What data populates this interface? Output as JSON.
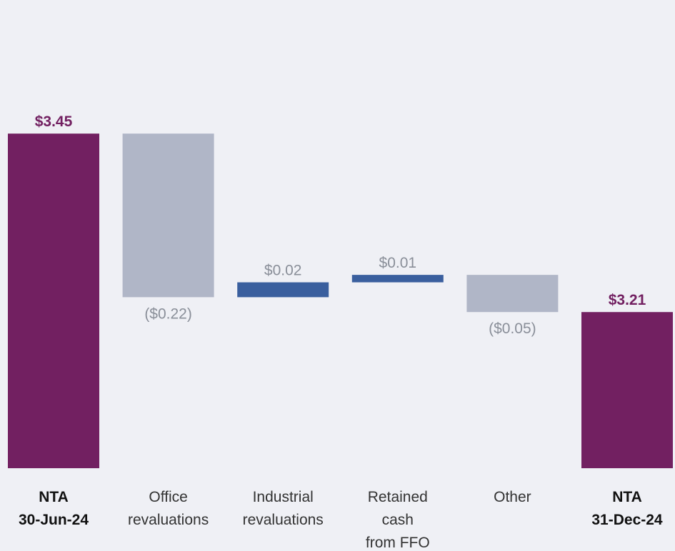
{
  "chart_data": {
    "type": "waterfall",
    "categories": [
      [
        "NTA",
        "30-Jun-24"
      ],
      [
        "Office",
        "revaluations"
      ],
      [
        "Industrial",
        "revaluations"
      ],
      [
        "Retained",
        "cash",
        "from FFO"
      ],
      [
        "Other"
      ],
      [
        "NTA",
        "31-Dec-24"
      ]
    ],
    "measure": [
      "absolute",
      "relative",
      "relative",
      "relative",
      "relative",
      "absolute"
    ],
    "values": [
      3.45,
      -0.22,
      0.02,
      0.01,
      -0.05,
      3.21
    ],
    "value_labels": [
      "$3.45",
      "($0.22)",
      "$0.02",
      "$0.01",
      "($0.05)",
      "$3.21"
    ],
    "colors": {
      "total": "#722061",
      "increase": "#3a5f9e",
      "decrease": "#b0b6c7"
    },
    "ylim": [
      3.0,
      3.55
    ]
  }
}
